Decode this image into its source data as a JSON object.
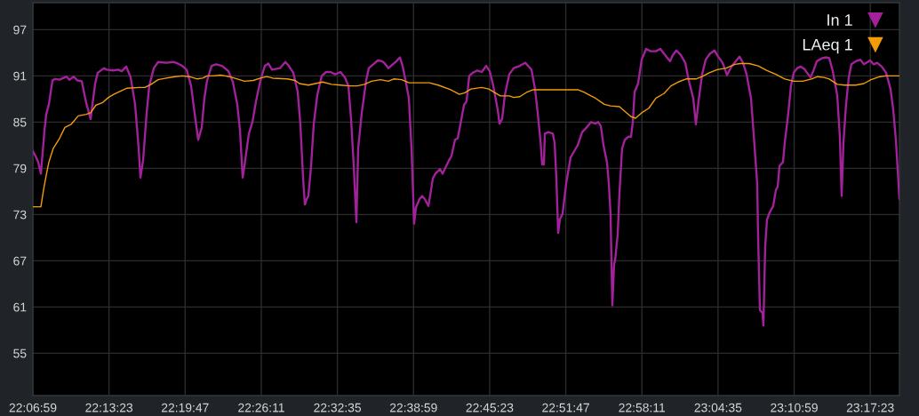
{
  "chart_data": {
    "type": "line",
    "series": [
      {
        "name": "In 1",
        "color": "#a3229c",
        "x": [
          22.1164,
          22.1201,
          22.1239,
          22.1276,
          22.1326,
          22.1351,
          22.1388,
          22.1438,
          22.1475,
          22.1538,
          22.1637,
          22.1675,
          22.1737,
          22.1787,
          22.1849,
          22.1911,
          22.1973,
          22.2036,
          22.2073,
          22.216,
          22.2198,
          22.2285,
          22.2359,
          22.2409,
          22.2472,
          22.2534,
          22.2596,
          22.2646,
          22.2671,
          22.2708,
          22.2758,
          22.2795,
          22.2858,
          22.292,
          22.3032,
          22.3132,
          22.3194,
          22.3256,
          22.3318,
          22.3381,
          22.3418,
          22.348,
          22.353,
          22.3567,
          22.3605,
          22.3667,
          22.3729,
          22.3816,
          22.3904,
          22.3966,
          22.4028,
          22.4066,
          22.4103,
          22.4128,
          22.419,
          22.424,
          22.429,
          22.4352,
          22.4414,
          22.4464,
          22.4514,
          22.4626,
          22.4701,
          22.475,
          22.4813,
          22.4875,
          22.4912,
          22.495,
          22.4975,
          22.5,
          22.5024,
          22.5062,
          22.5099,
          22.5149,
          22.5211,
          22.5273,
          22.5336,
          22.5398,
          22.5473,
          22.5535,
          22.5585,
          22.5622,
          22.566,
          22.5697,
          22.5722,
          22.5772,
          22.5834,
          22.5871,
          22.5933,
          22.5996,
          22.6058,
          22.6095,
          22.6145,
          22.6207,
          22.6257,
          22.6307,
          22.6344,
          22.6394,
          22.6432,
          22.6469,
          22.6506,
          22.6531,
          22.6581,
          22.6618,
          22.6656,
          22.6706,
          22.6743,
          22.6768,
          22.6805,
          22.6867,
          22.6905,
          22.6955,
          22.6992,
          22.7029,
          22.7079,
          22.7117,
          22.7154,
          22.7204,
          22.7241,
          22.7278,
          22.7328,
          22.7391,
          22.7453,
          22.7515,
          22.7565,
          22.7615,
          22.7677,
          22.7702,
          22.7739,
          22.7777,
          22.7839,
          22.7901,
          22.7988,
          22.8063,
          22.8113,
          22.815,
          22.82,
          22.8237,
          22.8275,
          22.83,
          22.8324,
          22.8337,
          22.8387,
          22.8449,
          22.8474,
          22.8499,
          22.8524,
          22.8549,
          22.8586,
          22.8636,
          22.8698,
          22.876,
          22.8798,
          22.886,
          22.8922,
          22.8984,
          22.9047,
          22.9084,
          22.9121,
          22.9159,
          22.9209,
          22.9234,
          22.9258,
          22.9283,
          22.9308,
          22.9321,
          22.9358,
          22.9383,
          22.942,
          22.9458,
          22.9508,
          22.9545,
          22.957,
          22.9595,
          22.9644,
          22.9694,
          22.9757,
          22.9819,
          22.9894,
          22.9956,
          23.0006,
          23.0055,
          23.0093,
          23.013,
          23.018,
          23.0242,
          23.0305,
          23.0354,
          23.0417,
          23.0454,
          23.0491,
          23.0541,
          23.0591,
          23.0653,
          23.0715,
          23.0765,
          23.0828,
          23.089,
          23.0952,
          23.1014,
          23.1064,
          23.1114,
          23.1164,
          23.1226,
          23.1263,
          23.1313,
          23.1326,
          23.1351,
          23.1388,
          23.14,
          23.1425,
          23.145,
          23.1488,
          23.1537,
          23.1575,
          23.16,
          23.1625,
          23.1674,
          23.1699,
          23.1749,
          23.1786,
          23.1824,
          23.1874,
          23.1923,
          23.1973,
          23.2011,
          23.206,
          23.2098,
          23.2148,
          23.2222,
          23.2285,
          23.2322,
          23.2372,
          23.2434,
          23.2471,
          23.2496,
          23.2521,
          23.2558,
          23.2596,
          23.2633,
          23.2695,
          23.2758,
          23.2808,
          23.2845,
          23.2895,
          23.2945,
          23.2994,
          23.3057,
          23.3119,
          23.3181,
          23.3219,
          23.3256,
          23.3306
        ],
        "values": [
          81.2,
          80.6,
          79.8,
          78.3,
          83.9,
          86.0,
          87.3,
          90.4,
          90.6,
          90.5,
          90.9,
          90.5,
          90.9,
          90.4,
          90.3,
          87.5,
          85.4,
          90.0,
          91.4,
          92.0,
          91.8,
          91.7,
          91.8,
          91.6,
          92.2,
          90.8,
          87.3,
          81.6,
          77.8,
          80.0,
          86.2,
          89.7,
          92.0,
          92.8,
          92.7,
          92.8,
          92.6,
          92.3,
          91.8,
          89.7,
          87.0,
          82.7,
          84.3,
          88.1,
          90.4,
          92.3,
          92.5,
          92.3,
          91.6,
          90.2,
          87.3,
          83.9,
          77.8,
          79.3,
          83.5,
          85.0,
          87.7,
          90.4,
          92.3,
          92.6,
          91.8,
          92.0,
          92.8,
          92.3,
          91.4,
          88.9,
          84.7,
          77.7,
          74.3,
          75.0,
          75.4,
          79.3,
          84.7,
          88.5,
          91.0,
          91.5,
          91.5,
          91.2,
          91.5,
          90.8,
          89.7,
          85.4,
          79.3,
          72.0,
          81.6,
          86.2,
          90.4,
          92.0,
          92.5,
          93.0,
          92.9,
          92.6,
          92.0,
          92.5,
          92.9,
          93.4,
          92.3,
          90.0,
          88.1,
          81.6,
          71.8,
          73.9,
          75.0,
          75.4,
          75.0,
          74.1,
          76.2,
          77.7,
          78.3,
          78.9,
          78.3,
          79.3,
          80.0,
          80.6,
          82.7,
          82.9,
          84.7,
          87.2,
          87.7,
          91.0,
          91.4,
          91.7,
          91.5,
          92.3,
          91.6,
          89.7,
          86.6,
          84.8,
          85.4,
          88.5,
          91.2,
          92.0,
          92.3,
          92.7,
          92.2,
          91.8,
          89.3,
          86.2,
          82.7,
          79.5,
          79.5,
          83.5,
          83.7,
          83.5,
          82.3,
          77.7,
          70.6,
          72.4,
          73.1,
          77.0,
          80.4,
          81.4,
          82.0,
          83.7,
          84.3,
          85.0,
          84.8,
          85.0,
          84.5,
          82.0,
          79.7,
          77.0,
          73.1,
          61.2,
          66.6,
          67.0,
          70.4,
          75.8,
          81.6,
          82.7,
          83.1,
          83.1,
          85.0,
          88.9,
          90.0,
          93.1,
          94.5,
          94.2,
          94.2,
          94.5,
          93.9,
          93.3,
          92.9,
          93.7,
          94.3,
          93.7,
          92.7,
          90.4,
          88.1,
          84.7,
          87.7,
          91.2,
          93.1,
          93.9,
          94.3,
          93.5,
          92.7,
          91.1,
          92.2,
          92.9,
          93.5,
          92.7,
          91.2,
          88.1,
          83.5,
          77.0,
          70.0,
          60.6,
          60.2,
          58.6,
          68.9,
          72.3,
          73.3,
          74.1,
          76.2,
          76.6,
          79.3,
          79.8,
          82.3,
          86.2,
          89.7,
          91.4,
          92.0,
          92.2,
          91.9,
          91.4,
          90.8,
          91.6,
          92.9,
          93.3,
          93.4,
          93.3,
          91.6,
          88.5,
          83.1,
          75.4,
          82.3,
          87.3,
          90.8,
          92.5,
          92.9,
          93.1,
          92.5,
          92.7,
          93.0,
          92.5,
          92.7,
          92.2,
          91.4,
          89.3,
          86.6,
          82.7,
          75.0
        ]
      },
      {
        "name": "LAeq 1",
        "color": "#f29c0a",
        "x": [
          22.1164,
          22.1276,
          22.1313,
          22.1351,
          22.1388,
          22.145,
          22.1538,
          22.1612,
          22.1699,
          22.1799,
          22.1911,
          22.1973,
          22.2048,
          22.2135,
          22.2223,
          22.2297,
          22.2409,
          22.2484,
          22.2658,
          22.2733,
          22.282,
          22.292,
          22.3032,
          22.3156,
          22.3256,
          22.3356,
          22.3468,
          22.3543,
          22.3605,
          22.3692,
          22.3792,
          22.3916,
          22.4028,
          22.4128,
          22.4252,
          22.4352,
          22.4439,
          22.4526,
          22.4726,
          22.4838,
          22.49,
          22.5024,
          22.5124,
          22.5224,
          22.5348,
          22.5473,
          22.5597,
          22.5709,
          22.5809,
          22.5909,
          22.6033,
          22.6145,
          22.622,
          22.6332,
          22.6432,
          22.6594,
          22.6718,
          22.6843,
          22.7017,
          22.7141,
          22.7216,
          22.7303,
          22.7453,
          22.7552,
          22.764,
          22.7714,
          22.7839,
          22.7901,
          22.7988,
          22.8088,
          22.8175,
          22.8337,
          22.8549,
          22.8798,
          22.8885,
          22.8984,
          22.9047,
          22.9171,
          22.9258,
          22.9383,
          22.9458,
          22.9545,
          22.9607,
          22.9694,
          22.9794,
          22.9894,
          23.0006,
          23.0105,
          23.0205,
          23.0317,
          23.0454,
          23.0541,
          23.0641,
          23.0753,
          23.0877,
          23.1002,
          23.1077,
          23.1201,
          23.1326,
          23.145,
          23.1575,
          23.1699,
          23.1824,
          23.1948,
          23.2073,
          23.216,
          23.2247,
          23.2322,
          23.2434,
          23.2534,
          23.2695,
          23.2808,
          23.2907,
          23.3032,
          23.3119,
          23.3306
        ],
        "values": [
          74.0,
          74.0,
          76.2,
          78.1,
          79.8,
          81.6,
          82.9,
          84.3,
          84.7,
          85.8,
          86.0,
          86.2,
          87.2,
          87.5,
          88.2,
          88.6,
          89.1,
          89.4,
          89.5,
          89.5,
          89.9,
          90.5,
          90.7,
          90.9,
          91.0,
          90.9,
          90.6,
          90.7,
          91.0,
          91.0,
          91.1,
          90.9,
          90.6,
          90.3,
          90.4,
          90.7,
          90.9,
          90.7,
          90.6,
          90.4,
          90.0,
          89.8,
          90.0,
          90.2,
          89.9,
          89.8,
          89.7,
          89.7,
          89.9,
          90.3,
          90.5,
          90.3,
          90.6,
          90.5,
          90.1,
          90.1,
          90.1,
          89.8,
          89.2,
          88.6,
          88.8,
          89.3,
          89.5,
          89.3,
          88.8,
          88.4,
          88.4,
          88.2,
          88.3,
          88.9,
          89.2,
          89.2,
          89.2,
          89.2,
          88.9,
          88.4,
          88.1,
          87.3,
          87.1,
          87.0,
          86.4,
          85.7,
          85.5,
          86.2,
          86.8,
          88.1,
          88.7,
          89.7,
          90.2,
          90.6,
          90.6,
          90.9,
          91.4,
          91.8,
          92.0,
          92.5,
          92.6,
          92.6,
          92.3,
          91.7,
          91.2,
          90.6,
          90.3,
          90.3,
          90.6,
          90.9,
          90.8,
          90.6,
          89.9,
          89.8,
          89.8,
          90.0,
          90.5,
          90.9,
          91.0,
          91.0
        ]
      }
    ],
    "xlim": [
      22.11639,
      23.3306
    ],
    "xticks": [
      {
        "value": 22.11639,
        "label": "22:06:59"
      },
      {
        "value": 22.22306,
        "label": "22:13:23"
      },
      {
        "value": 22.32972,
        "label": "22:19:47"
      },
      {
        "value": 22.43639,
        "label": "22:26:11"
      },
      {
        "value": 22.54306,
        "label": "22:32:35"
      },
      {
        "value": 22.64972,
        "label": "22:38:59"
      },
      {
        "value": 22.75639,
        "label": "22:45:23"
      },
      {
        "value": 22.86306,
        "label": "22:51:47"
      },
      {
        "value": 22.96972,
        "label": "22:58:11"
      },
      {
        "value": 23.07639,
        "label": "23:04:35"
      },
      {
        "value": 23.18306,
        "label": "23:10:59"
      },
      {
        "value": 23.28972,
        "label": "23:17:23"
      }
    ],
    "ylim": [
      49.5,
      100.5
    ],
    "yticks": [
      55,
      61,
      67,
      73,
      79,
      85,
      91,
      97
    ],
    "grid": true,
    "legend": "top right"
  }
}
